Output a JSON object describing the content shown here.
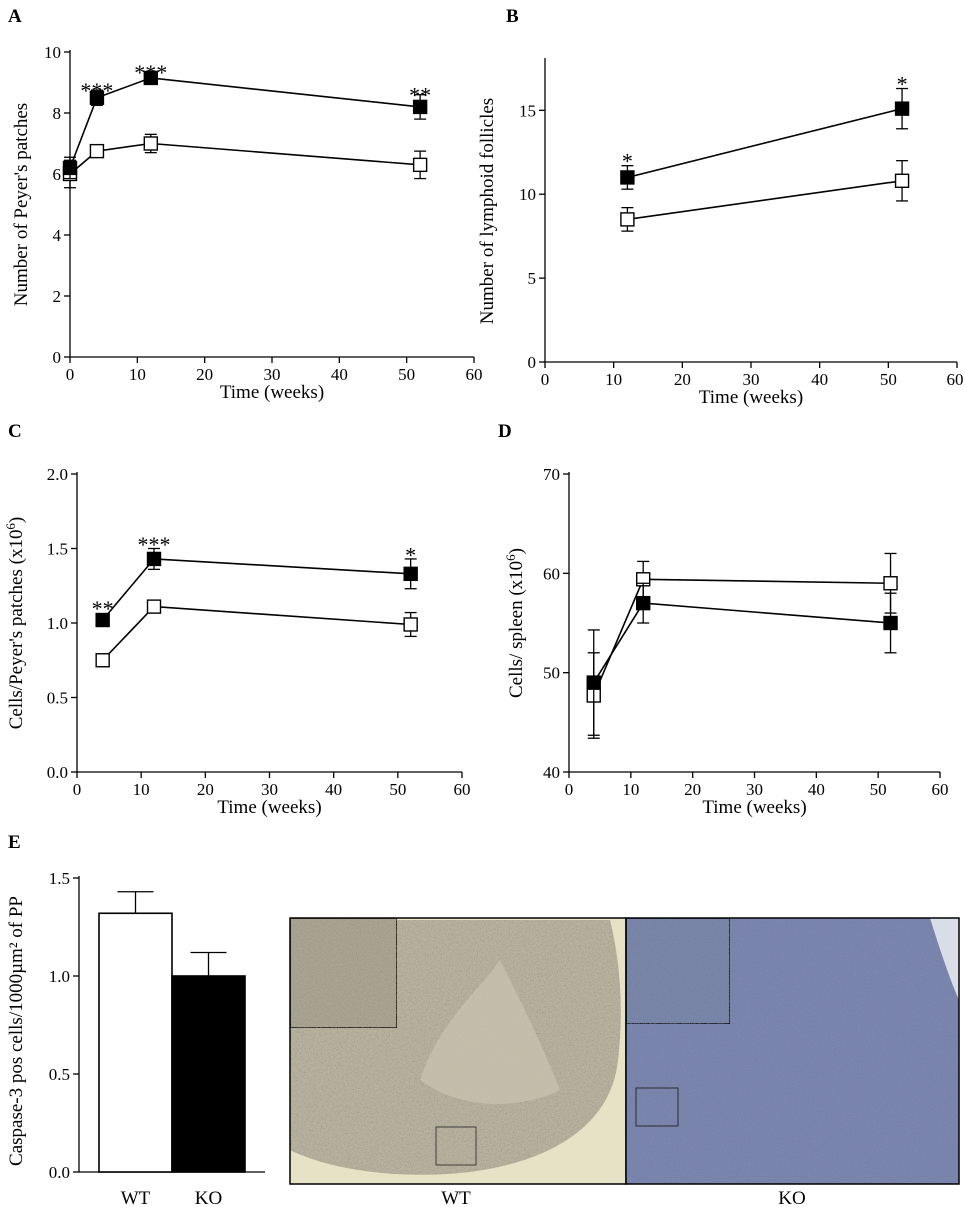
{
  "chart_data": [
    {
      "panel": "A",
      "type": "line",
      "xlabel": "Time (weeks)",
      "ylabel": "Number of Peyer's patches",
      "xlim": [
        0,
        60
      ],
      "ylim": [
        0,
        10
      ],
      "xticks": [
        0,
        10,
        20,
        30,
        40,
        50,
        60
      ],
      "yticks": [
        0,
        2,
        4,
        6,
        8,
        10
      ],
      "series": [
        {
          "marker": "filled",
          "x": [
            0,
            4,
            12,
            52
          ],
          "y": [
            6.2,
            8.5,
            9.15,
            8.2
          ],
          "err": [
            0.35,
            0.25,
            0.2,
            0.4
          ]
        },
        {
          "marker": "open",
          "x": [
            0,
            4,
            12,
            52
          ],
          "y": [
            6.0,
            6.75,
            7.0,
            6.3
          ],
          "err": [
            0.45,
            0.2,
            0.3,
            0.45
          ]
        }
      ],
      "annotations": [
        {
          "x": 4,
          "y": 8.75,
          "text": "***"
        },
        {
          "x": 12,
          "y": 9.35,
          "text": "***"
        },
        {
          "x": 52,
          "y": 8.6,
          "text": "**"
        }
      ]
    },
    {
      "panel": "B",
      "type": "line",
      "xlabel": "Time (weeks)",
      "ylabel": "Number of lymphoid follicles",
      "xlim": [
        0,
        60
      ],
      "ylim": [
        0,
        18
      ],
      "xticks": [
        0,
        10,
        20,
        30,
        40,
        50,
        60
      ],
      "xtick_labels": [
        "0",
        "10",
        "20",
        "30",
        "40",
        "50",
        "60"
      ],
      "yticks": [
        0,
        5,
        10,
        15
      ],
      "series": [
        {
          "marker": "filled",
          "x": [
            12,
            52
          ],
          "y": [
            11.0,
            15.1
          ],
          "err": [
            0.7,
            1.2
          ]
        },
        {
          "marker": "open",
          "x": [
            12,
            52
          ],
          "y": [
            8.5,
            10.8
          ],
          "err": [
            0.7,
            1.2
          ]
        }
      ],
      "annotations": [
        {
          "x": 12,
          "y": 12.0,
          "text": "*"
        },
        {
          "x": 52,
          "y": 16.6,
          "text": "*"
        }
      ]
    },
    {
      "panel": "C",
      "type": "line",
      "xlabel": "Time (weeks)",
      "ylabel": "Cells/Peyer's patches (x10",
      "ylabel_sup": "6",
      "ylabel_end": ")",
      "xlim": [
        0,
        60
      ],
      "ylim": [
        0,
        2.0
      ],
      "xticks": [
        0,
        10,
        20,
        30,
        40,
        50,
        60
      ],
      "yticks": [
        0.0,
        0.5,
        1.0,
        1.5,
        2.0
      ],
      "ytick_labels": [
        "0.0",
        "0.5",
        "1.0",
        "1.5",
        "2.0"
      ],
      "series": [
        {
          "marker": "filled",
          "x": [
            4,
            12,
            52
          ],
          "y": [
            1.02,
            1.43,
            1.33
          ],
          "err": [
            0.04,
            0.07,
            0.1
          ]
        },
        {
          "marker": "open",
          "x": [
            4,
            12,
            52
          ],
          "y": [
            0.75,
            1.11,
            0.99
          ],
          "err": [
            0.04,
            0.03,
            0.08
          ]
        }
      ],
      "annotations": [
        {
          "x": 4,
          "y": 1.1,
          "text": "**"
        },
        {
          "x": 12,
          "y": 1.53,
          "text": "***"
        },
        {
          "x": 52,
          "y": 1.46,
          "text": "*"
        }
      ]
    },
    {
      "panel": "D",
      "type": "line",
      "xlabel": "Time (weeks)",
      "ylabel": "Cells/ spleen (x10",
      "ylabel_sup": "6",
      "ylabel_end": ")",
      "xlim": [
        0,
        60
      ],
      "ylim": [
        40,
        70
      ],
      "xticks": [
        0,
        10,
        20,
        30,
        40,
        50,
        60
      ],
      "yticks": [
        40,
        50,
        60,
        70
      ],
      "series": [
        {
          "marker": "filled",
          "x": [
            4,
            12,
            52
          ],
          "y": [
            49.0,
            57.0,
            55.0
          ],
          "err": [
            5.3,
            2.0,
            3.0
          ]
        },
        {
          "marker": "open",
          "x": [
            4,
            12,
            52
          ],
          "y": [
            47.7,
            59.4,
            59.0
          ],
          "err": [
            4.3,
            1.8,
            3.0
          ]
        }
      ],
      "annotations": []
    },
    {
      "panel": "E",
      "type": "bar",
      "categories": [
        "WT",
        "KO"
      ],
      "values": [
        1.32,
        1.0
      ],
      "errors": [
        0.11,
        0.12
      ],
      "colors": [
        "#ffffff",
        "#000000"
      ],
      "ylabel": "Caspase-3 pos cells/1000µm² of PP",
      "ylim": [
        0,
        1.5
      ],
      "yticks": [
        0.0,
        0.5,
        1.0,
        1.5
      ],
      "ytick_labels": [
        "0.0",
        "0.5",
        "1.0",
        "1.5"
      ]
    }
  ],
  "micrographs": {
    "labels": [
      "WT",
      "KO"
    ],
    "wt_tissue_color": "#b6b29e",
    "ko_tissue_color": "#7c86ad"
  }
}
